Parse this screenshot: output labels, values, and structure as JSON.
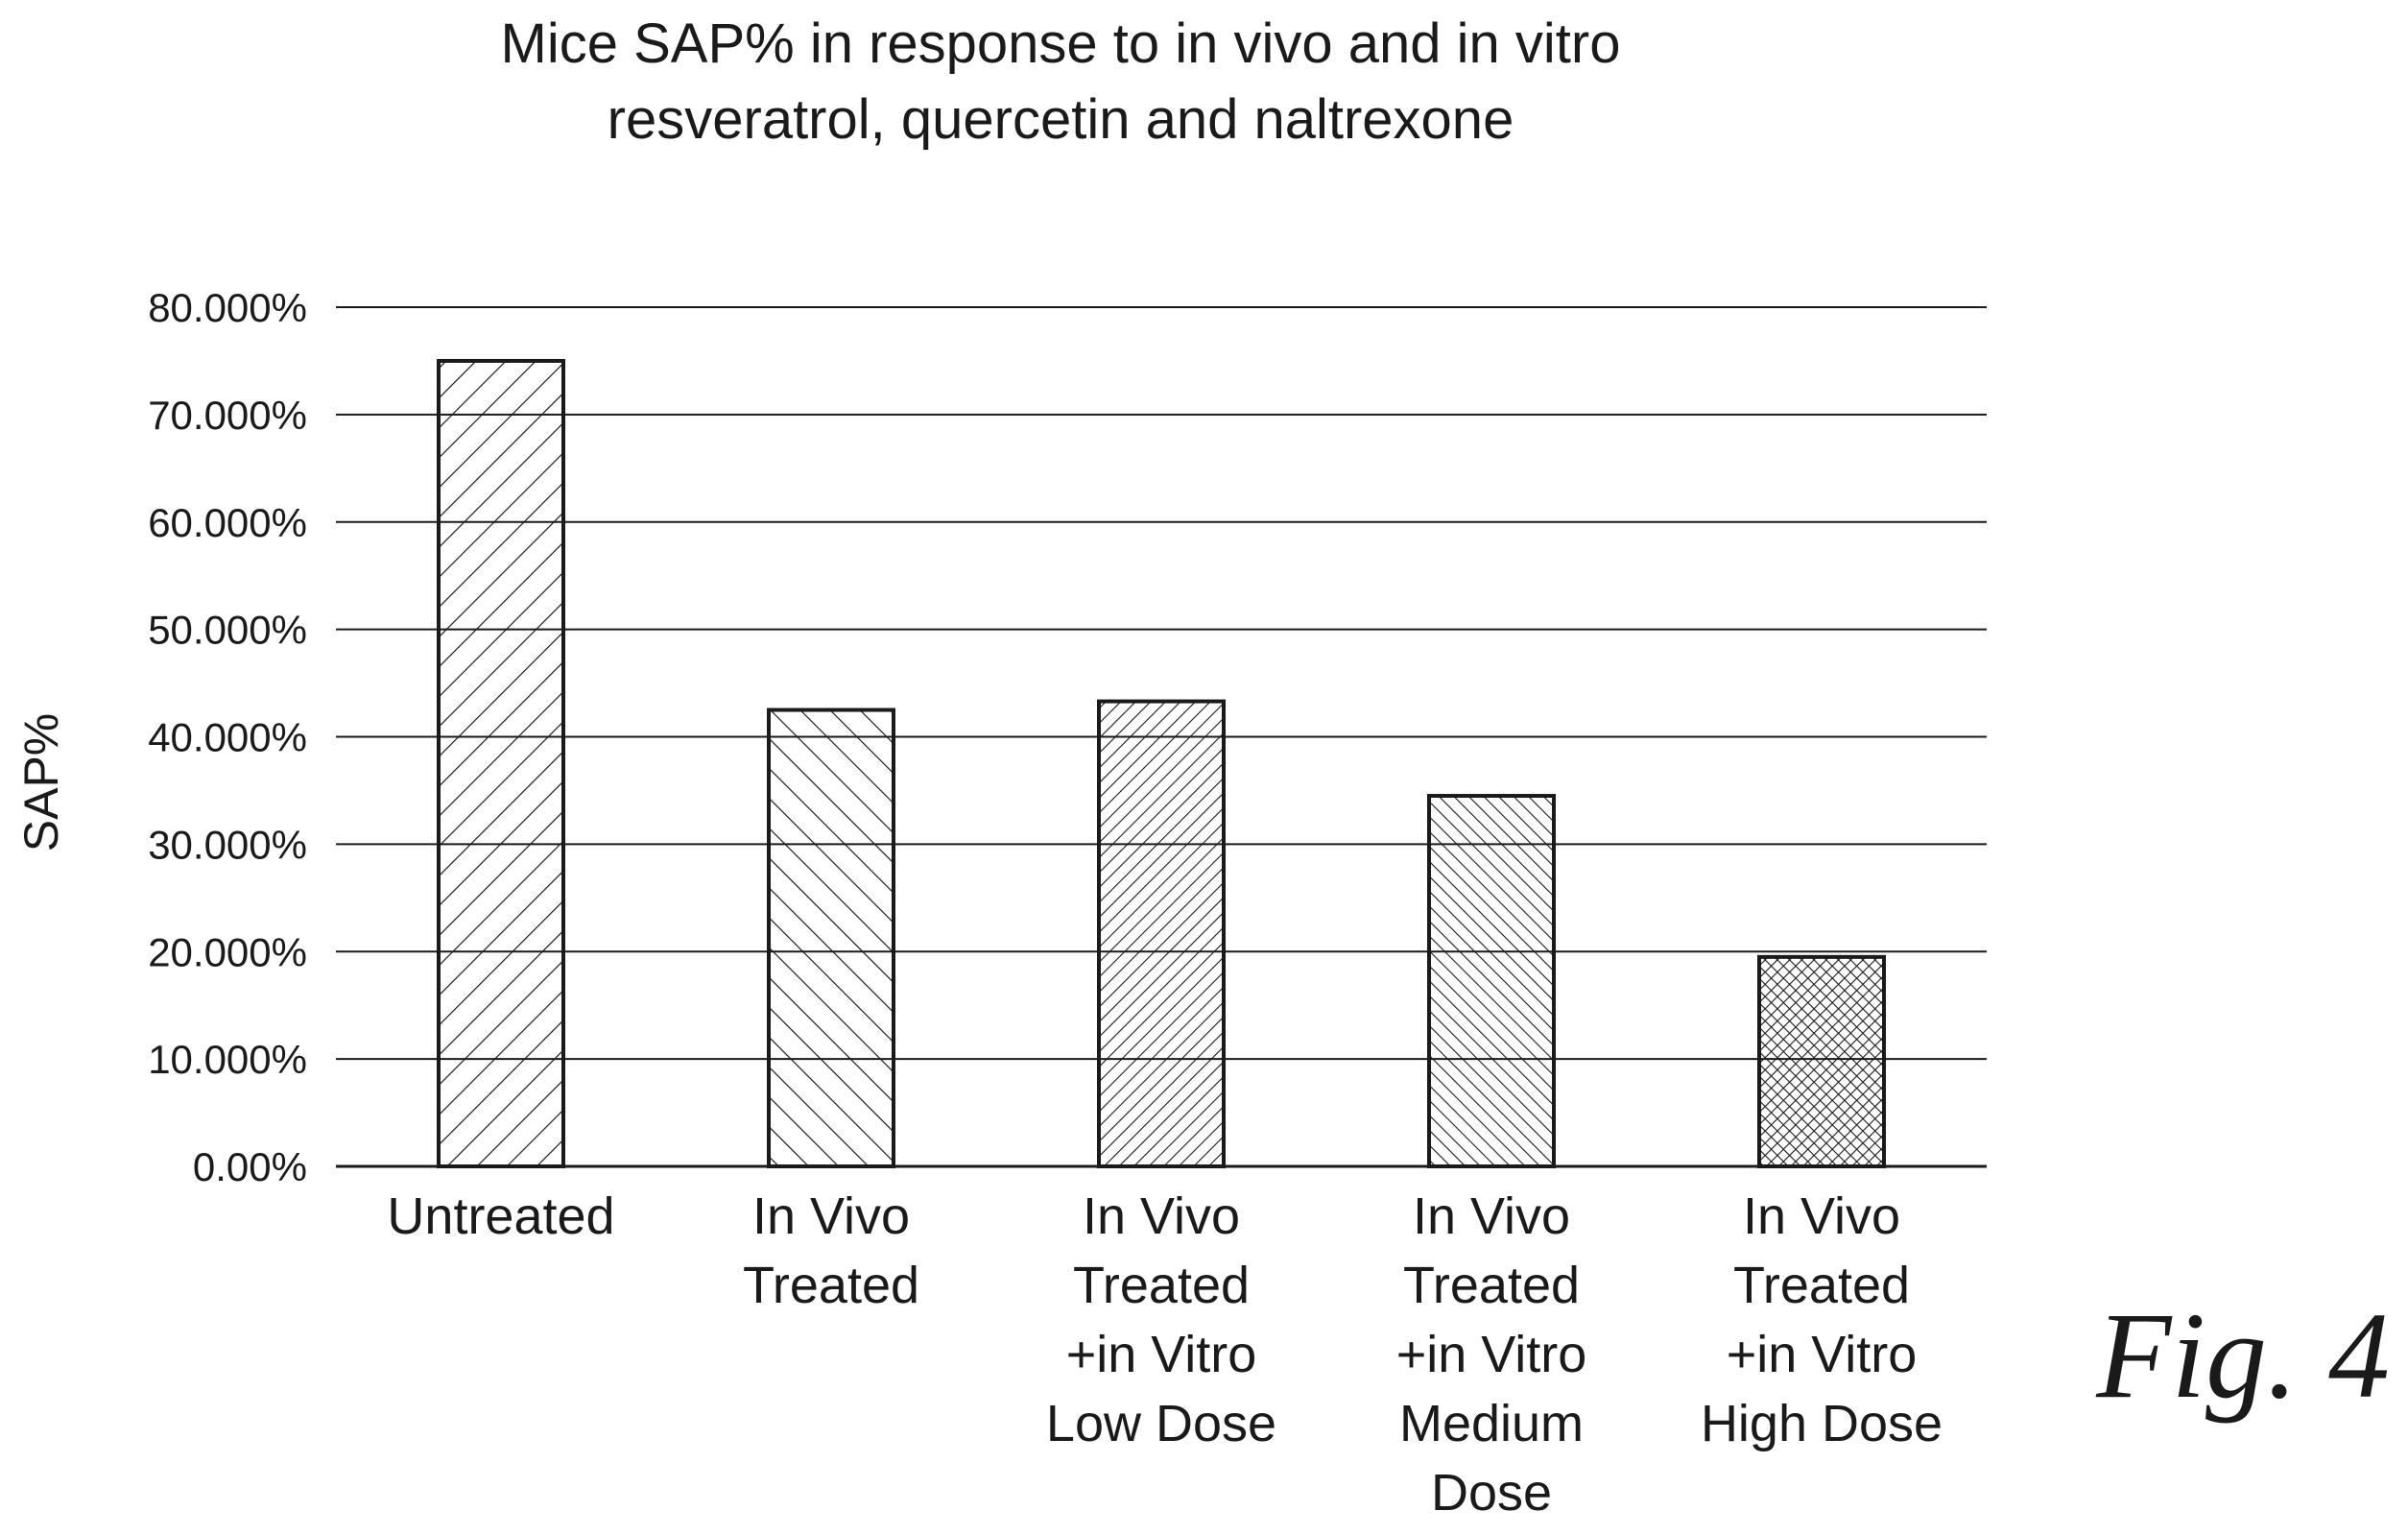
{
  "chart_data": {
    "type": "bar",
    "title": "Mice SAP% in response to in vivo and in vitro resveratrol, quercetin and naltrexone",
    "title_lines": [
      "Mice SAP% in response to in vivo and in vitro",
      "resveratrol, quercetin and naltrexone"
    ],
    "xlabel": "",
    "ylabel": "SAP%",
    "ylim": [
      0,
      0.8
    ],
    "yticks": [
      0,
      0.1,
      0.2,
      0.3,
      0.4,
      0.5,
      0.6,
      0.7,
      0.8
    ],
    "ytick_labels": [
      "0.00%",
      "10.000%",
      "20.000%",
      "30.000%",
      "40.000%",
      "50.000%",
      "60.000%",
      "70.000%",
      "80.000%"
    ],
    "grid": true,
    "legend": "none",
    "categories": [
      "Untreated",
      "In Vivo Treated",
      "In Vivo Treated +in Vitro Low Dose",
      "In Vivo Treated +in Vitro Medium Dose",
      "In Vivo Treated +in Vitro High Dose"
    ],
    "category_lines": [
      [
        "Untreated"
      ],
      [
        "In Vivo",
        "Treated"
      ],
      [
        "In Vivo",
        "Treated",
        "+in Vitro",
        "Low Dose"
      ],
      [
        "In Vivo",
        "Treated",
        "+in Vitro",
        "Medium",
        "Dose"
      ],
      [
        "In Vivo",
        "Treated",
        "+in Vitro",
        "High Dose"
      ]
    ],
    "values": [
      0.75,
      0.425,
      0.433,
      0.345,
      0.195
    ],
    "bar_patterns": [
      "wide-forward-hatch",
      "wide-back-hatch",
      "dense-forward-hatch",
      "dense-back-hatch",
      "crosshatch"
    ]
  },
  "figure_label": "Fig. 4",
  "colors": {
    "ink": "#1a1a1a",
    "background": "#ffffff"
  }
}
